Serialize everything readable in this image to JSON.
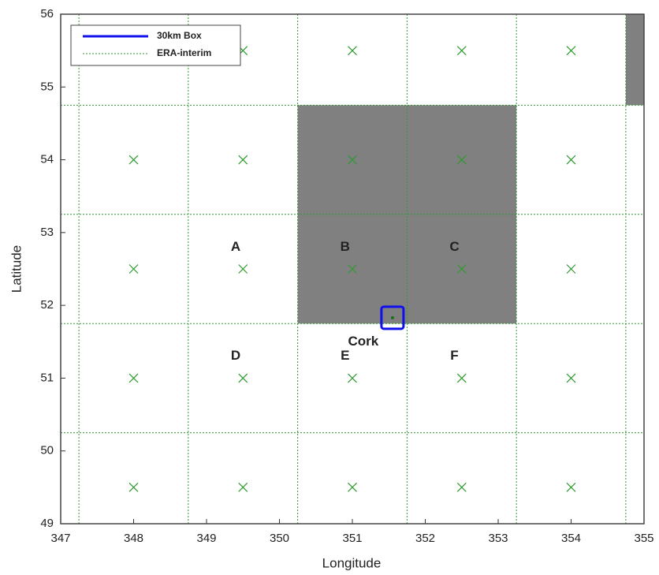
{
  "chart_data": {
    "type": "scatter",
    "xlabel": "Longitude",
    "ylabel": "Latitude",
    "xlim": [
      347,
      355
    ],
    "ylim": [
      49,
      56
    ],
    "xticks": [
      347,
      348,
      349,
      350,
      351,
      352,
      353,
      354,
      355
    ],
    "yticks": [
      49,
      50,
      51,
      52,
      53,
      54,
      55,
      56
    ],
    "cell_edges_x": [
      347.25,
      348.75,
      350.25,
      351.75,
      353.25,
      354.75
    ],
    "cell_edges_y": [
      50.25,
      51.75,
      53.25,
      54.75
    ],
    "grid_color": "#2e9a2e",
    "shaded": [
      {
        "x": [
          350.25,
          353.25
        ],
        "y": [
          51.75,
          54.75
        ],
        "color": "#808080"
      },
      {
        "x": [
          354.75,
          355
        ],
        "y": [
          54.75,
          56
        ],
        "color": "#808080"
      }
    ],
    "series": [
      {
        "name": "30km Box",
        "color": "#1010ee",
        "x": [
          351.55
        ],
        "y": [
          51.83
        ]
      },
      {
        "name": "ERA-interim",
        "color": "#2e9a2e",
        "x": [
          348,
          349.5,
          351,
          352.5,
          354,
          348,
          349.5,
          351,
          352.5,
          354,
          348,
          349.5,
          351,
          352.5,
          354,
          348,
          349.5,
          351,
          352.5,
          354,
          348,
          349.5,
          351,
          352.5,
          354
        ],
        "y": [
          55.5,
          55.5,
          55.5,
          55.5,
          55.5,
          54,
          54,
          54,
          54,
          54,
          52.5,
          52.5,
          52.5,
          52.5,
          52.5,
          51,
          51,
          51,
          51,
          51,
          49.5,
          49.5,
          49.5,
          49.5,
          49.5
        ]
      }
    ],
    "annotations": [
      {
        "text": "A",
        "x": 349.4,
        "y": 52.8
      },
      {
        "text": "B",
        "x": 350.9,
        "y": 52.8
      },
      {
        "text": "C",
        "x": 352.4,
        "y": 52.8
      },
      {
        "text": "D",
        "x": 349.4,
        "y": 51.3
      },
      {
        "text": "E",
        "x": 350.9,
        "y": 51.3
      },
      {
        "text": "F",
        "x": 352.4,
        "y": 51.3
      },
      {
        "text": "Cork",
        "x": 351.15,
        "y": 51.5
      }
    ]
  }
}
